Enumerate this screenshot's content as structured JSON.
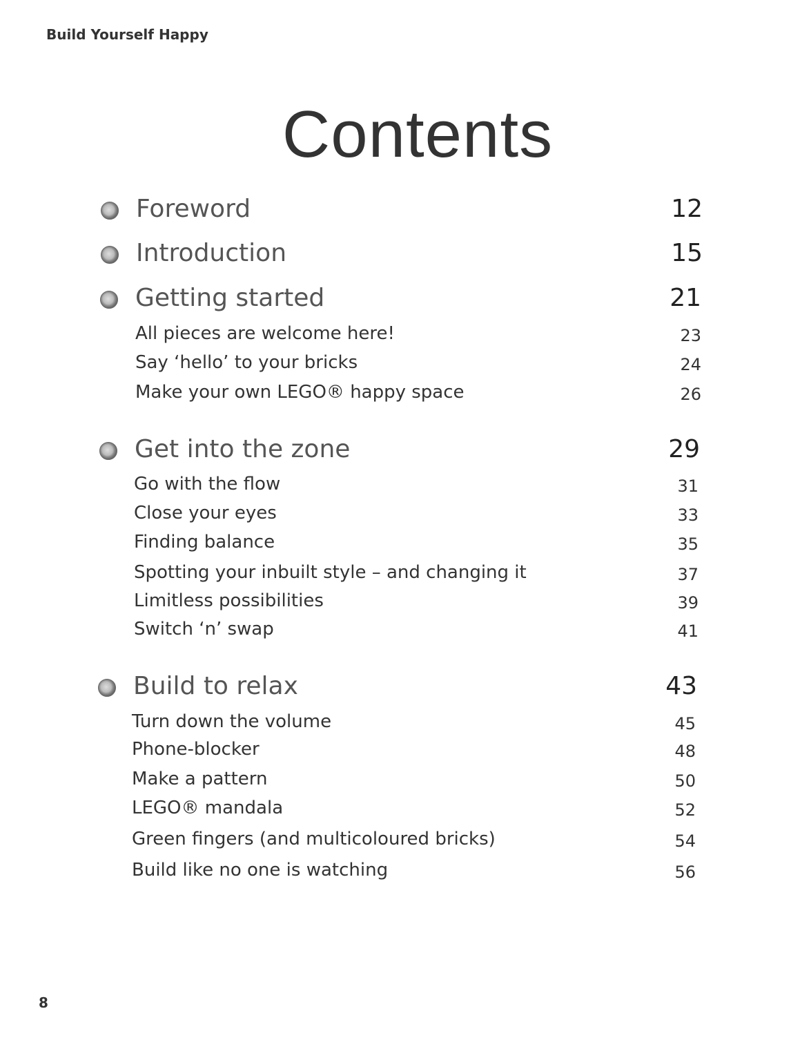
{
  "running_header": "Build Yourself Happy",
  "title": "Contents",
  "page_number": "8",
  "bullet_icon": "lego-stud-icon",
  "sections": [
    {
      "title": "Foreword",
      "page": "12",
      "items": []
    },
    {
      "title": "Introduction",
      "page": "15",
      "items": []
    },
    {
      "title": "Getting started",
      "page": "21",
      "items": [
        {
          "title": "All pieces are welcome here!",
          "page": "23"
        },
        {
          "title": "Say ‘hello’ to your bricks",
          "page": "24"
        },
        {
          "title": "Make your own LEGO® happy space",
          "page": "26"
        }
      ]
    },
    {
      "title": "Get into the zone",
      "page": "29",
      "items": [
        {
          "title": "Go with the flow",
          "page": "31"
        },
        {
          "title": "Close your eyes",
          "page": "33"
        },
        {
          "title": "Finding balance",
          "page": "35"
        },
        {
          "title": "Spotting your inbuilt style – and changing it",
          "page": "37"
        },
        {
          "title": "Limitless possibilities",
          "page": "39"
        },
        {
          "title": "Switch ‘n’ swap",
          "page": "41"
        }
      ]
    },
    {
      "title": "Build to relax",
      "page": "43",
      "items": [
        {
          "title": "Turn down the volume",
          "page": "45"
        },
        {
          "title": "Phone-blocker",
          "page": "48"
        },
        {
          "title": "Make a pattern",
          "page": "50"
        },
        {
          "title": "LEGO® mandala",
          "page": "52"
        },
        {
          "title": "Green fingers (and multicoloured bricks)",
          "page": "54"
        },
        {
          "title": "Build like no one is watching",
          "page": "56"
        }
      ]
    }
  ]
}
